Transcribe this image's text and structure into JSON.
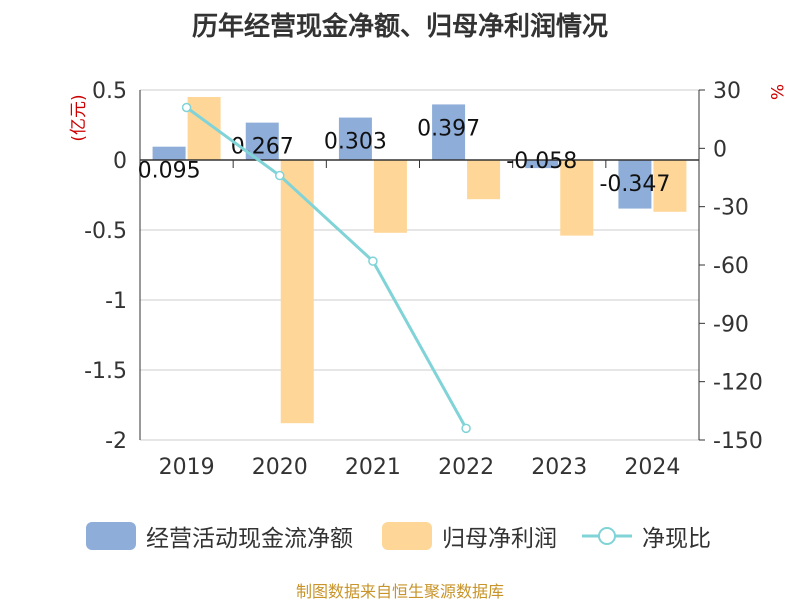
{
  "title": "历年经营现金净额、归母净利润情况",
  "source": "制图数据来自恒生聚源数据库",
  "legend": [
    {
      "label": "经营活动现金流净额",
      "color": "#8eadd8",
      "type": "bar"
    },
    {
      "label": "归母净利润",
      "color": "#fed697",
      "type": "bar"
    },
    {
      "label": "净现比",
      "color": "#80d3d7",
      "type": "line"
    }
  ],
  "chart_data": {
    "type": "bar",
    "categories": [
      "2019",
      "2020",
      "2021",
      "2022",
      "2023",
      "2024"
    ],
    "y_left_label": "(亿元)",
    "y_right_label": "%",
    "y_left_ticks": [
      "0.5",
      "0",
      "-0.5",
      "-1",
      "-1.5",
      "-2"
    ],
    "y_right_ticks": [
      "30",
      "0",
      "-30",
      "-60",
      "-90",
      "-120",
      "-150"
    ],
    "ylim_left": [
      -2,
      0.5
    ],
    "ylim_right": [
      -150,
      30
    ],
    "series": [
      {
        "name": "经营活动现金流净额",
        "axis": "left",
        "values": [
          0.095,
          0.267,
          0.303,
          0.397,
          -0.058,
          -0.347
        ],
        "data_labels": [
          "0.095",
          "0.267",
          "0.303",
          "0.397",
          "-0.058",
          "-0.347"
        ]
      },
      {
        "name": "归母净利润",
        "axis": "left",
        "values": [
          0.45,
          -1.88,
          -0.52,
          -0.28,
          -0.54,
          -0.37
        ]
      },
      {
        "name": "净现比",
        "axis": "right",
        "values": [
          21,
          -14,
          -58,
          -144,
          null,
          null
        ]
      }
    ]
  }
}
